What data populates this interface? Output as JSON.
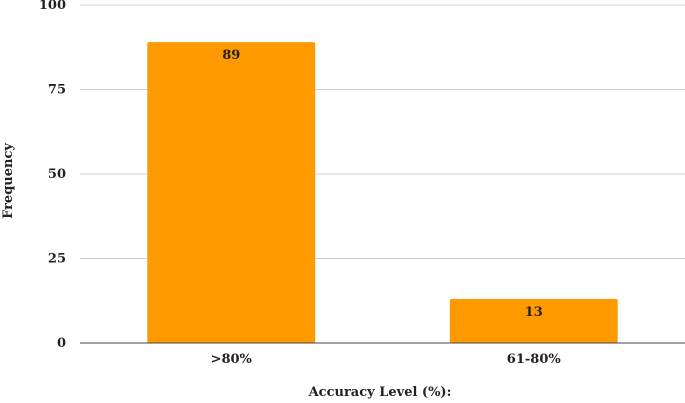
{
  "chart_data": {
    "type": "bar",
    "categories": [
      ">80%",
      "61-80%"
    ],
    "values": [
      89,
      13
    ],
    "data_labels": [
      "89",
      "13"
    ],
    "xlabel": "Accuracy Level (%):",
    "ylabel": "Frequency",
    "ylim": [
      0,
      100
    ],
    "yticks": [
      "0",
      "25",
      "50",
      "75",
      "100"
    ],
    "grid": true,
    "legend": "none",
    "bar_color": "#FF9900"
  }
}
